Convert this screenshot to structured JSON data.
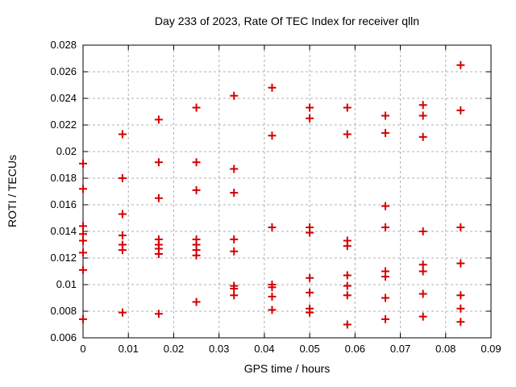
{
  "title": "Day 233 of 2023, Rate Of TEC Index for receiver qlln",
  "chart_data": {
    "type": "scatter",
    "title": "Day 233 of 2023, Rate Of TEC Index for receiver qlln",
    "xlabel": "GPS time / hours",
    "ylabel": "ROTI / TECUs",
    "xlim": [
      0,
      0.09
    ],
    "ylim": [
      0.006,
      0.028
    ],
    "x_tick_labels": [
      "0",
      "0.01",
      "0.02",
      "0.03",
      "0.04",
      "0.05",
      "0.06",
      "0.07",
      "0.08",
      "0.09"
    ],
    "y_tick_labels": [
      "0.006",
      "0.008",
      "0.01",
      "0.012",
      "0.014",
      "0.016",
      "0.018",
      "0.02",
      "0.022",
      "0.024",
      "0.026",
      "0.028"
    ],
    "grid": true,
    "legend": "none",
    "marker": "plus",
    "marker_color": "#d40000",
    "grid_color": "#b0b0b0",
    "series": [
      {
        "name": "ROTI",
        "points": [
          [
            0,
            0.0191
          ],
          [
            0,
            0.0172
          ],
          [
            0,
            0.0144
          ],
          [
            0,
            0.0138
          ],
          [
            0,
            0.0133
          ],
          [
            0,
            0.0124
          ],
          [
            0,
            0.0111
          ],
          [
            0,
            0.0074
          ],
          [
            0.0087,
            0.0213
          ],
          [
            0.0087,
            0.018
          ],
          [
            0.0087,
            0.0153
          ],
          [
            0.0087,
            0.0137
          ],
          [
            0.0087,
            0.013
          ],
          [
            0.0087,
            0.0126
          ],
          [
            0.0087,
            0.0079
          ],
          [
            0.0167,
            0.0224
          ],
          [
            0.0167,
            0.0192
          ],
          [
            0.0167,
            0.0165
          ],
          [
            0.0167,
            0.0134
          ],
          [
            0.0167,
            0.013
          ],
          [
            0.0167,
            0.0127
          ],
          [
            0.0167,
            0.0123
          ],
          [
            0.0167,
            0.0078
          ],
          [
            0.025,
            0.0233
          ],
          [
            0.025,
            0.0192
          ],
          [
            0.025,
            0.0171
          ],
          [
            0.025,
            0.0134
          ],
          [
            0.025,
            0.013
          ],
          [
            0.025,
            0.0126
          ],
          [
            0.025,
            0.0122
          ],
          [
            0.025,
            0.0087
          ],
          [
            0.0333,
            0.0242
          ],
          [
            0.0333,
            0.0187
          ],
          [
            0.0333,
            0.0169
          ],
          [
            0.0333,
            0.0134
          ],
          [
            0.0333,
            0.0125
          ],
          [
            0.0333,
            0.0099
          ],
          [
            0.0333,
            0.0097
          ],
          [
            0.0333,
            0.0092
          ],
          [
            0.0417,
            0.0248
          ],
          [
            0.0417,
            0.0212
          ],
          [
            0.0417,
            0.0143
          ],
          [
            0.0417,
            0.01
          ],
          [
            0.0417,
            0.0098
          ],
          [
            0.0417,
            0.0091
          ],
          [
            0.0417,
            0.0081
          ],
          [
            0.05,
            0.0233
          ],
          [
            0.05,
            0.0225
          ],
          [
            0.05,
            0.0143
          ],
          [
            0.05,
            0.0139
          ],
          [
            0.05,
            0.0105
          ],
          [
            0.05,
            0.0094
          ],
          [
            0.05,
            0.0082
          ],
          [
            0.05,
            0.0079
          ],
          [
            0.0583,
            0.0233
          ],
          [
            0.0583,
            0.0213
          ],
          [
            0.0583,
            0.0133
          ],
          [
            0.0583,
            0.0129
          ],
          [
            0.0583,
            0.0107
          ],
          [
            0.0583,
            0.0099
          ],
          [
            0.0583,
            0.0092
          ],
          [
            0.0583,
            0.007
          ],
          [
            0.0667,
            0.0227
          ],
          [
            0.0667,
            0.0214
          ],
          [
            0.0667,
            0.0159
          ],
          [
            0.0667,
            0.0143
          ],
          [
            0.0667,
            0.011
          ],
          [
            0.0667,
            0.0106
          ],
          [
            0.0667,
            0.009
          ],
          [
            0.0667,
            0.0074
          ],
          [
            0.075,
            0.0235
          ],
          [
            0.075,
            0.0227
          ],
          [
            0.075,
            0.0211
          ],
          [
            0.075,
            0.014
          ],
          [
            0.075,
            0.0115
          ],
          [
            0.075,
            0.011
          ],
          [
            0.075,
            0.0093
          ],
          [
            0.075,
            0.0076
          ],
          [
            0.0833,
            0.0265
          ],
          [
            0.0833,
            0.0231
          ],
          [
            0.0833,
            0.0143
          ],
          [
            0.0833,
            0.0116
          ],
          [
            0.0833,
            0.0092
          ],
          [
            0.0833,
            0.0082
          ],
          [
            0.0833,
            0.0072
          ]
        ]
      }
    ]
  }
}
